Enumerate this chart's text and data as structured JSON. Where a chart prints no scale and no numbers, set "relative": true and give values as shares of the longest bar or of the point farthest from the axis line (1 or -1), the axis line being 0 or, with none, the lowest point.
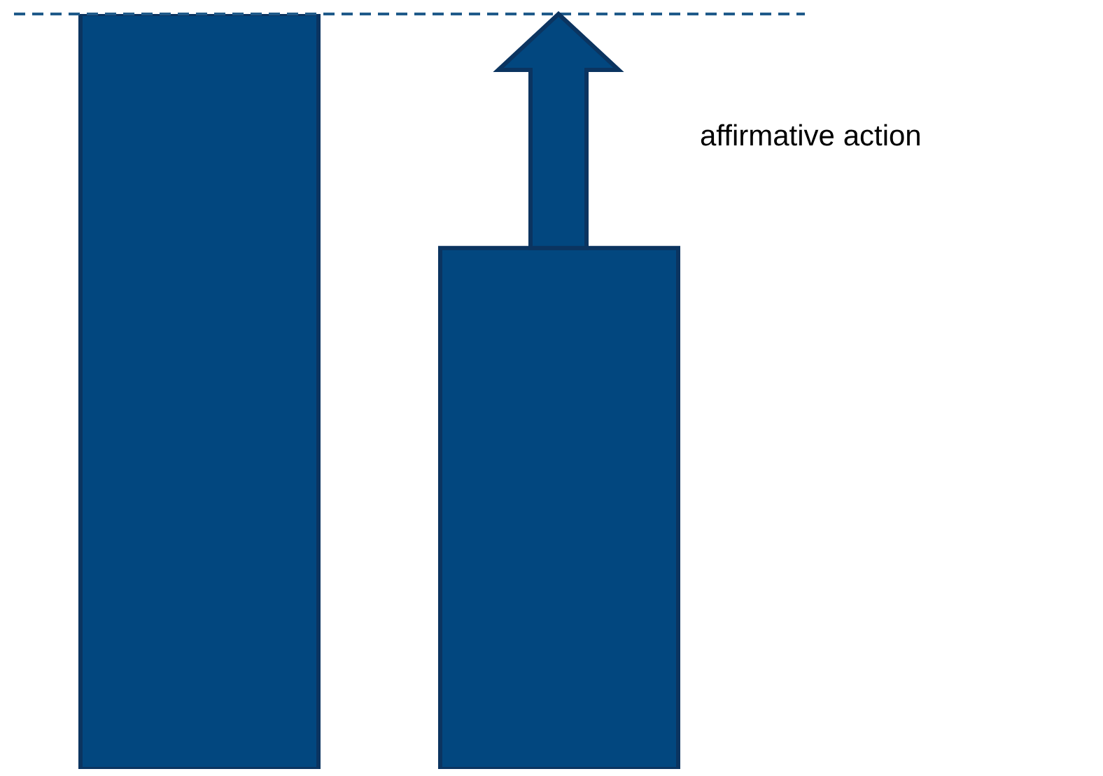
{
  "chart_data": {
    "type": "bar",
    "relative": true,
    "categories": [
      null,
      null
    ],
    "values": [
      1,
      0.69
    ],
    "color": "#02477f",
    "ref_lines": [
      {
        "axis": "y",
        "value": 1,
        "color": "#1f5a8a",
        "line_style": "dashed"
      }
    ],
    "annotations": [
      "affirmative action"
    ],
    "grid": false,
    "legend": false
  }
}
